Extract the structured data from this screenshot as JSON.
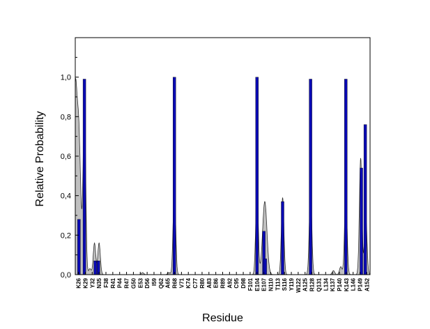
{
  "chart_data": {
    "type": "bar",
    "title": "",
    "xlabel": "Residue",
    "ylabel": "Relative Probability",
    "ylim": [
      0,
      1.2
    ],
    "yticks": [
      "0,0",
      "0,2",
      "0,4",
      "0,6",
      "0,8",
      "1,0"
    ],
    "grid": false,
    "categories": [
      "K26",
      "K29",
      "Y32",
      "N35",
      "F38",
      "R41",
      "P44",
      "R47",
      "G50",
      "E53",
      "D56",
      "I59",
      "Q62",
      "A65",
      "R68",
      "V71",
      "K74",
      "C77",
      "R80",
      "A83",
      "E86",
      "R89",
      "A92",
      "C95",
      "D98",
      "F101",
      "E104",
      "E107",
      "N110",
      "T113",
      "S116",
      "Y119",
      "W122",
      "A125",
      "R128",
      "Q131",
      "L134",
      "K137",
      "P140",
      "K143",
      "L146",
      "P149",
      "A152"
    ],
    "series": [
      {
        "kind": "bars",
        "color": "#0a0ab4",
        "values": [
          {
            "pos": 26.2,
            "y": 0.28
          },
          {
            "pos": 28.6,
            "y": 0.99
          },
          {
            "pos": 33.3,
            "y": 0.07
          },
          {
            "pos": 34.7,
            "y": 0.07
          },
          {
            "pos": 67.9,
            "y": 1.0
          },
          {
            "pos": 104.0,
            "y": 1.0
          },
          {
            "pos": 107.0,
            "y": 0.22
          },
          {
            "pos": 107.6,
            "y": 0.08
          },
          {
            "pos": 115.2,
            "y": 0.37
          },
          {
            "pos": 127.4,
            "y": 0.99
          },
          {
            "pos": 142.8,
            "y": 0.99
          },
          {
            "pos": 149.6,
            "y": 0.54
          },
          {
            "pos": 151.3,
            "y": 0.76
          }
        ]
      },
      {
        "kind": "area",
        "color": "#c0c0c0",
        "values": [
          {
            "pos": 24.6,
            "y": 0.88
          },
          {
            "pos": 26.0,
            "y": 0.63
          },
          {
            "pos": 27.0,
            "y": 0.2
          },
          {
            "pos": 28.6,
            "y": 0.85
          },
          {
            "pos": 31.0,
            "y": 0.03
          },
          {
            "pos": 33.0,
            "y": 0.16
          },
          {
            "pos": 35.0,
            "y": 0.16
          },
          {
            "pos": 54.0,
            "y": 0.01
          },
          {
            "pos": 65.5,
            "y": 0.01
          },
          {
            "pos": 67.9,
            "y": 0.44
          },
          {
            "pos": 104.0,
            "y": 0.44
          },
          {
            "pos": 107.4,
            "y": 0.37
          },
          {
            "pos": 115.2,
            "y": 0.39
          },
          {
            "pos": 127.4,
            "y": 0.42
          },
          {
            "pos": 137.4,
            "y": 0.02
          },
          {
            "pos": 140.6,
            "y": 0.04
          },
          {
            "pos": 142.8,
            "y": 0.41
          },
          {
            "pos": 149.3,
            "y": 0.59
          },
          {
            "pos": 151.5,
            "y": 0.3
          }
        ]
      }
    ]
  }
}
